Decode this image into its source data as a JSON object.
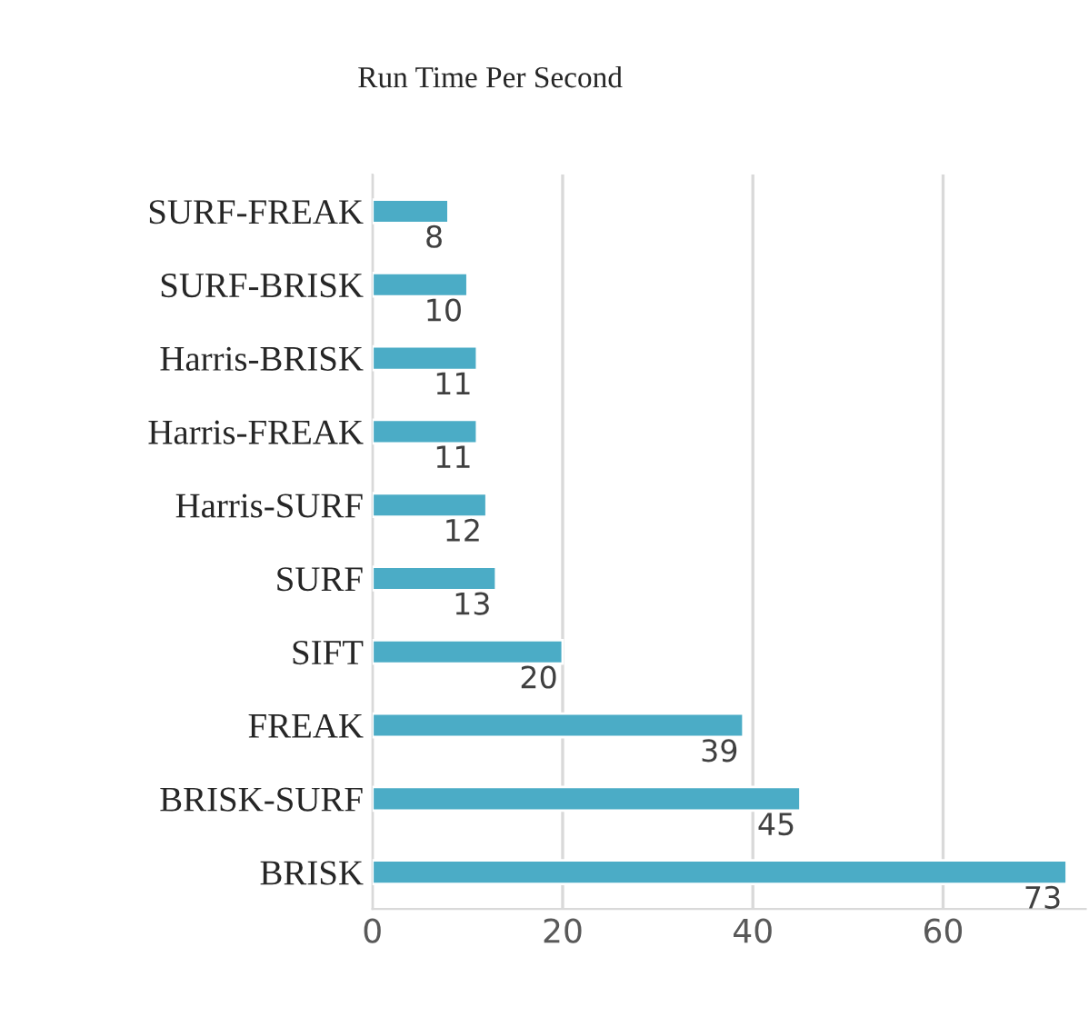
{
  "chart_data": {
    "type": "bar",
    "orientation": "horizontal",
    "title": "Run Time Per Second",
    "categories": [
      "SURF-FREAK",
      "SURF-BRISK",
      "Harris-BRISK",
      "Harris-FREAK",
      "Harris-SURF",
      "SURF",
      "SIFT",
      "FREAK",
      "BRISK-SURF",
      "BRISK"
    ],
    "values": [
      8,
      10,
      11,
      11,
      12,
      13,
      20,
      39,
      45,
      73
    ],
    "color": "#4bacc6",
    "xlim": [
      0,
      75
    ],
    "xticks": [
      0,
      20,
      40,
      60
    ],
    "grid": "x",
    "data_labels": true
  }
}
